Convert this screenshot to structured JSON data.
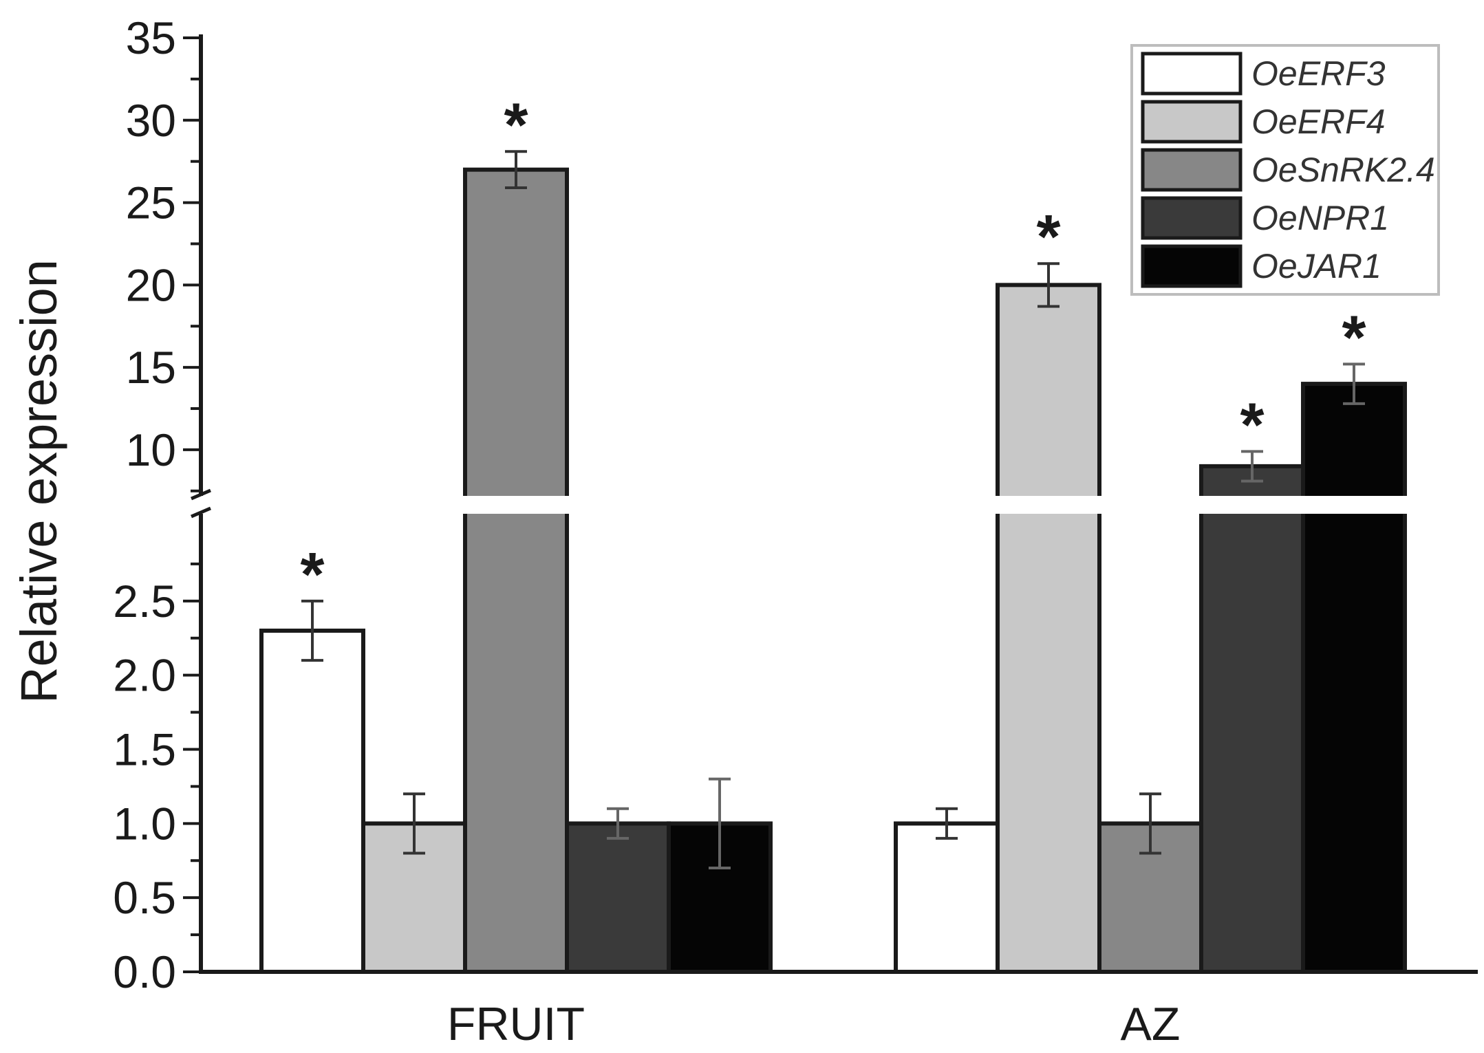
{
  "chart_data": {
    "type": "bar",
    "title": "",
    "xlabel": "",
    "ylabel": "Relative expression",
    "categories": [
      "FRUIT",
      "AZ"
    ],
    "axis_break": {
      "lower_range": [
        0,
        3.0
      ],
      "upper_range": [
        7.2,
        35
      ],
      "lower_ticks": [
        "0.0",
        "0.5",
        "1.0",
        "1.5",
        "2.0",
        "2.5"
      ],
      "upper_ticks": [
        "10",
        "15",
        "20",
        "25",
        "30",
        "35"
      ]
    },
    "legend_position": "top-right",
    "grid": false,
    "series": [
      {
        "name": "OeERF3",
        "color": "#ffffff",
        "values": [
          2.3,
          1.0
        ],
        "errors": [
          0.2,
          0.1
        ],
        "significant": [
          true,
          false
        ]
      },
      {
        "name": "OeERF4",
        "color": "#c8c8c8",
        "values": [
          1.0,
          20.0
        ],
        "errors": [
          0.2,
          1.3
        ],
        "significant": [
          false,
          true
        ]
      },
      {
        "name": "OeSnRK2.4",
        "color": "#878787",
        "values": [
          27.0,
          1.0
        ],
        "errors": [
          1.1,
          0.2
        ],
        "significant": [
          true,
          false
        ]
      },
      {
        "name": "OeNPR1",
        "color": "#3a3a3a",
        "values": [
          1.0,
          9.0
        ],
        "errors": [
          0.1,
          0.9
        ],
        "significant": [
          false,
          true
        ]
      },
      {
        "name": "OeJAR1",
        "color": "#050505",
        "values": [
          1.0,
          14.0
        ],
        "errors": [
          0.3,
          1.2
        ],
        "significant": [
          false,
          true
        ]
      }
    ],
    "significance_marker": "*"
  }
}
